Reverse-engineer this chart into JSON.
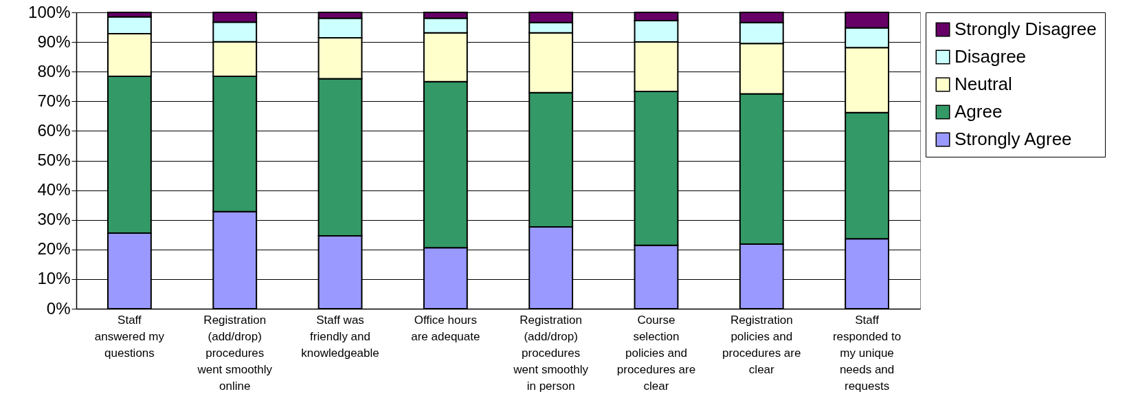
{
  "chart_data": {
    "type": "bar",
    "stacked": true,
    "categories": [
      "Staff\nanswered my\nquestions",
      "Registration\n(add/drop)\nprocedures\nwent smoothly\nonline",
      "Staff was\nfriendly and\nknowledgeable",
      "Office hours\nare adequate",
      "Registration\n(add/drop)\nprocedures\nwent smoothly\nin person",
      "Course\nselection\npolicies and\nprocedures are\nclear",
      "Registration\npolicies and\nprocedures are\nclear",
      "Staff\nresponded to\nmy unique\nneeds and\nrequests"
    ],
    "series": [
      {
        "name": "Strongly Agree",
        "color": "#9999ff",
        "values": [
          25.5,
          32.8,
          24.6,
          20.6,
          27.6,
          21.4,
          21.8,
          23.6
        ]
      },
      {
        "name": "Agree",
        "color": "#339966",
        "values": [
          52.9,
          45.6,
          53.0,
          56.0,
          45.3,
          51.9,
          50.7,
          42.6
        ]
      },
      {
        "name": "Neutral",
        "color": "#ffffcc",
        "values": [
          14.4,
          11.7,
          13.8,
          16.5,
          20.2,
          16.7,
          17.0,
          21.9
        ]
      },
      {
        "name": "Disagree",
        "color": "#ccffff",
        "values": [
          5.7,
          6.6,
          6.6,
          4.9,
          3.5,
          7.2,
          7.1,
          6.7
        ]
      },
      {
        "name": "Strongly Disagree",
        "color": "#660066",
        "values": [
          1.5,
          3.3,
          2.0,
          2.0,
          3.4,
          2.8,
          3.4,
          5.2
        ]
      }
    ],
    "ylim": [
      0,
      100
    ],
    "yticks": [
      {
        "value": 0,
        "label": "0%"
      },
      {
        "value": 10,
        "label": "10%"
      },
      {
        "value": 20,
        "label": "20%"
      },
      {
        "value": 30,
        "label": "30%"
      },
      {
        "value": 40,
        "label": "40%"
      },
      {
        "value": 50,
        "label": "50%"
      },
      {
        "value": 60,
        "label": "60%"
      },
      {
        "value": 70,
        "label": "70%"
      },
      {
        "value": 80,
        "label": "80%"
      },
      {
        "value": 90,
        "label": "90%"
      },
      {
        "value": 100,
        "label": "100%"
      }
    ],
    "grid": "y",
    "legend": "right"
  }
}
